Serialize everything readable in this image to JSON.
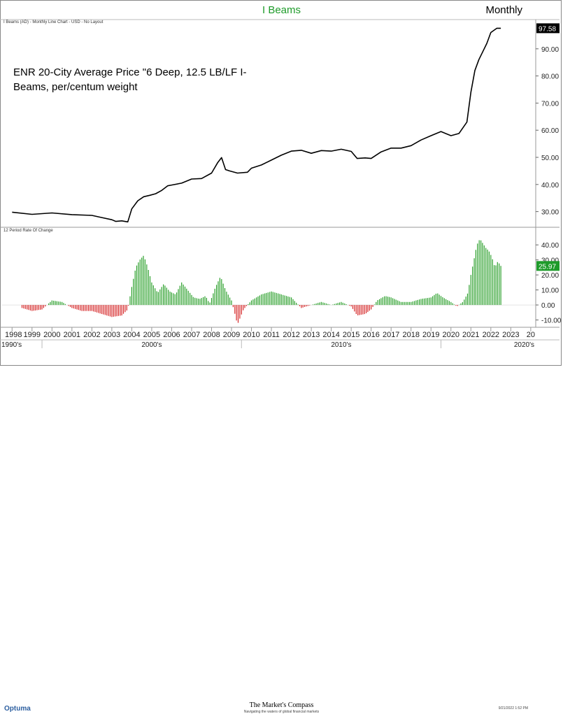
{
  "header": {
    "title": "I Beams",
    "period": "Monthly"
  },
  "subtitle_top": "I Beams (AD) - Monthly Line Chart - USD - No Layout",
  "subtitle_bottom": "12 Period Rate Of Change",
  "annotation": "ENR 20-City Average Price \"6 Deep, 12.5 LB/LF I-Beams, per/centum weight",
  "footer": {
    "brand": "The Market's Compass",
    "tagline": "Navigating the waters of global financial markets",
    "logo": "Optuma",
    "timestamp": "9/21/2022 1:52 PM"
  },
  "colors": {
    "title": "#1e9b2a",
    "price_line": "#000000",
    "positive": "#2ca02c",
    "negative": "#d62728",
    "last_price_box": "#000000",
    "last_roc_box": "#1e9b2a"
  },
  "chart_data": [
    {
      "type": "line",
      "name": "price",
      "ylim": [
        25,
        100
      ],
      "yticks": [
        "30.00",
        "40.00",
        "50.00",
        "60.00",
        "70.00",
        "80.00",
        "90.00"
      ],
      "last_label": "97.58",
      "x": [
        1998.0,
        1999.0,
        2000.0,
        2001.0,
        2002.0,
        2002.5,
        2003.0,
        2003.2,
        2003.5,
        2003.8,
        2004.0,
        2004.3,
        2004.6,
        2004.9,
        2005.2,
        2005.5,
        2005.8,
        2006.0,
        2006.5,
        2007.0,
        2007.5,
        2008.0,
        2008.3,
        2008.5,
        2008.7,
        2008.9,
        2009.3,
        2009.8,
        2010.0,
        2010.5,
        2011.0,
        2011.5,
        2012.0,
        2012.5,
        2013.0,
        2013.5,
        2014.0,
        2014.5,
        2015.0,
        2015.3,
        2015.7,
        2016.0,
        2016.5,
        2017.0,
        2017.5,
        2018.0,
        2018.5,
        2019.0,
        2019.5,
        2020.0,
        2020.4,
        2020.8,
        2021.0,
        2021.2,
        2021.4,
        2021.6,
        2021.8,
        2022.0,
        2022.3,
        2022.5
      ],
      "values": [
        29.8,
        29.0,
        29.5,
        28.9,
        28.6,
        27.8,
        27.0,
        26.4,
        26.6,
        26.2,
        31.0,
        34.0,
        35.5,
        36.0,
        36.6,
        37.8,
        39.5,
        39.8,
        40.5,
        42.0,
        42.2,
        44.2,
        48.0,
        49.9,
        45.5,
        45.0,
        44.2,
        44.5,
        46.0,
        47.2,
        49.0,
        50.8,
        52.3,
        52.6,
        51.5,
        52.5,
        52.3,
        53.0,
        52.2,
        49.6,
        49.8,
        49.6,
        52.0,
        53.4,
        53.4,
        54.3,
        56.4,
        58.0,
        59.5,
        58.0,
        58.8,
        63.0,
        74.0,
        82.0,
        86.0,
        89.0,
        92.0,
        96.0,
        97.58,
        97.58
      ]
    },
    {
      "type": "bar",
      "name": "12 Period Rate Of Change",
      "ylim": [
        -13,
        48
      ],
      "yticks": [
        "40.00",
        "30.00",
        "20.00",
        "10.00",
        "0.00",
        "-10.00"
      ],
      "last_label": "25.97",
      "x": [
        1998.5,
        1999.0,
        1999.5,
        2000.0,
        2000.5,
        2001.0,
        2001.5,
        2002.0,
        2002.5,
        2003.0,
        2003.5,
        2003.8,
        2004.0,
        2004.2,
        2004.4,
        2004.6,
        2004.8,
        2005.0,
        2005.3,
        2005.6,
        2005.9,
        2006.2,
        2006.5,
        2006.8,
        2007.1,
        2007.4,
        2007.7,
        2007.9,
        2008.2,
        2008.45,
        2008.7,
        2009.0,
        2009.15,
        2009.3,
        2009.6,
        2010.0,
        2010.5,
        2011.0,
        2011.5,
        2012.0,
        2012.5,
        2013.0,
        2013.5,
        2014.0,
        2014.5,
        2015.0,
        2015.3,
        2015.7,
        2016.0,
        2016.3,
        2016.7,
        2017.0,
        2017.5,
        2018.0,
        2018.5,
        2019.0,
        2019.3,
        2019.6,
        2020.0,
        2020.3,
        2020.6,
        2020.85,
        2021.0,
        2021.15,
        2021.3,
        2021.45,
        2021.6,
        2021.75,
        2021.9,
        2022.05,
        2022.2,
        2022.35,
        2022.5
      ],
      "values": [
        -2,
        -4,
        -3,
        3,
        2,
        -2,
        -4,
        -4,
        -6,
        -8,
        -7,
        -3,
        12,
        25,
        30,
        33,
        25,
        15,
        8,
        14,
        9,
        7,
        15,
        10,
        5,
        4,
        6,
        1,
        12,
        19,
        10,
        3,
        -5,
        -13,
        -3,
        3,
        7,
        9,
        7,
        5,
        -2,
        0,
        2,
        0,
        2,
        -1,
        -7,
        -6,
        -3,
        3,
        6,
        5,
        2,
        2,
        4,
        5,
        8,
        5,
        2,
        -1,
        2,
        8,
        20,
        30,
        40,
        44,
        41,
        38,
        36,
        32,
        25,
        29,
        26
      ]
    }
  ],
  "x_axis": {
    "years": [
      "1998",
      "1999",
      "2000",
      "2001",
      "2002",
      "2003",
      "2004",
      "2005",
      "2006",
      "2007",
      "2008",
      "2009",
      "2010",
      "2011",
      "2012",
      "2013",
      "2014",
      "2015",
      "2016",
      "2017",
      "2018",
      "2019",
      "2020",
      "2021",
      "2022",
      "2023",
      "20"
    ],
    "decades": [
      "1990's",
      "2000's",
      "2010's",
      "2020's"
    ]
  }
}
